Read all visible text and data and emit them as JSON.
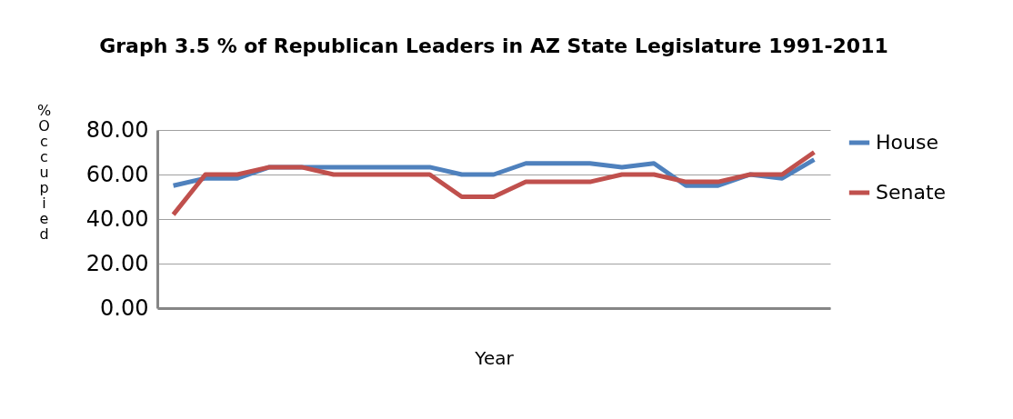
{
  "chart_data": {
    "type": "line",
    "title": "Graph 3.5 % of Republican Leaders in AZ State Legislature 1991-2011",
    "xlabel": "Year",
    "ylabel": "% Occupied",
    "categories": [
      null,
      null,
      null,
      null,
      null,
      null,
      null,
      null,
      null,
      null,
      null,
      null,
      null,
      null,
      null,
      null,
      null,
      null,
      null,
      null,
      null
    ],
    "series": [
      {
        "name": "House",
        "color": "#4f81bd",
        "values": [
          55,
          58.3,
          58.3,
          63.3,
          63.3,
          63.3,
          63.3,
          63.3,
          63.3,
          60,
          60,
          65,
          65,
          65,
          63.3,
          65,
          55,
          55,
          60,
          58.3,
          66.7
        ]
      },
      {
        "name": "Senate",
        "color": "#c0504d",
        "values": [
          42,
          60,
          60,
          63.3,
          63.3,
          60,
          60,
          60,
          60,
          50,
          50,
          56.7,
          56.7,
          56.7,
          60,
          60,
          56.7,
          56.7,
          60,
          60,
          70
        ]
      }
    ],
    "ylim": [
      0,
      80
    ],
    "yticks": [
      {
        "value": 0,
        "label": "0.00"
      },
      {
        "value": 20,
        "label": "20.00"
      },
      {
        "value": 40,
        "label": "40.00"
      },
      {
        "value": 60,
        "label": "60.00"
      },
      {
        "value": 80,
        "label": "80.00"
      }
    ],
    "grid": "y",
    "legend": "right",
    "line_style": "solid",
    "marker": "none"
  }
}
